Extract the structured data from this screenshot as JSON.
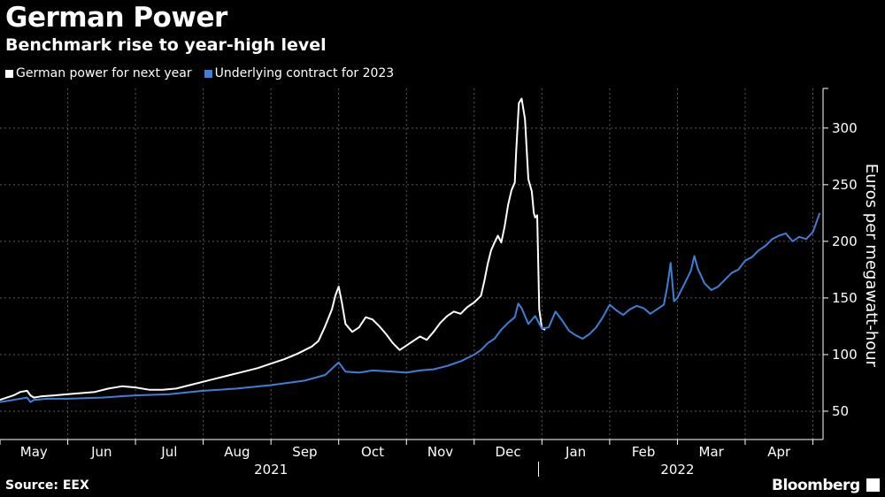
{
  "header": {
    "title": "German Power",
    "subtitle": "Benchmark rise to year-high level"
  },
  "footer": {
    "source": "Source: EEX",
    "brand": "Bloomberg"
  },
  "colors": {
    "background": "#000000",
    "series_white": "#ffffff",
    "series_blue": "#3d7fd9",
    "grid": "#5a5a5a"
  },
  "chart_data": {
    "type": "line",
    "title": "German Power",
    "subtitle": "Benchmark rise to year-high level",
    "xlabel": "",
    "ylabel": "Euros per megawatt-hour",
    "ylim": [
      25,
      335
    ],
    "xlim": [
      0,
      12.15
    ],
    "x_unit": "months since 2021-05-01",
    "yticks": [
      50,
      100,
      150,
      200,
      250,
      300
    ],
    "months": [
      "May",
      "Jun",
      "Jul",
      "Aug",
      "Sep",
      "Oct",
      "Nov",
      "Dec",
      "Jan",
      "Feb",
      "Mar",
      "Apr"
    ],
    "years": [
      {
        "label": "2021",
        "center": 4
      },
      {
        "label": "2022",
        "center": 10
      }
    ],
    "year_divider": 7.95,
    "grid": true,
    "legend_position": "top-left",
    "series": [
      {
        "name": "German power for next year",
        "color": "#ffffff",
        "points": [
          [
            0.0,
            60
          ],
          [
            0.1,
            62
          ],
          [
            0.2,
            64
          ],
          [
            0.3,
            67
          ],
          [
            0.4,
            68
          ],
          [
            0.45,
            64
          ],
          [
            0.5,
            62
          ],
          [
            0.6,
            63
          ],
          [
            0.8,
            64
          ],
          [
            1.0,
            65
          ],
          [
            1.2,
            66
          ],
          [
            1.4,
            67
          ],
          [
            1.6,
            70
          ],
          [
            1.8,
            72
          ],
          [
            2.0,
            71
          ],
          [
            2.2,
            69
          ],
          [
            2.4,
            69
          ],
          [
            2.6,
            70
          ],
          [
            2.8,
            73
          ],
          [
            3.0,
            76
          ],
          [
            3.2,
            79
          ],
          [
            3.4,
            82
          ],
          [
            3.6,
            85
          ],
          [
            3.8,
            88
          ],
          [
            4.0,
            92
          ],
          [
            4.2,
            96
          ],
          [
            4.4,
            101
          ],
          [
            4.5,
            104
          ],
          [
            4.6,
            107
          ],
          [
            4.7,
            112
          ],
          [
            4.8,
            125
          ],
          [
            4.9,
            140
          ],
          [
            4.95,
            152
          ],
          [
            5.0,
            160
          ],
          [
            5.05,
            145
          ],
          [
            5.1,
            127
          ],
          [
            5.2,
            120
          ],
          [
            5.3,
            124
          ],
          [
            5.4,
            133
          ],
          [
            5.5,
            131
          ],
          [
            5.6,
            125
          ],
          [
            5.7,
            118
          ],
          [
            5.8,
            110
          ],
          [
            5.9,
            104
          ],
          [
            6.0,
            108
          ],
          [
            6.1,
            112
          ],
          [
            6.2,
            116
          ],
          [
            6.3,
            113
          ],
          [
            6.4,
            120
          ],
          [
            6.5,
            128
          ],
          [
            6.6,
            134
          ],
          [
            6.7,
            138
          ],
          [
            6.8,
            136
          ],
          [
            6.9,
            142
          ],
          [
            7.0,
            146
          ],
          [
            7.1,
            152
          ],
          [
            7.15,
            165
          ],
          [
            7.2,
            180
          ],
          [
            7.25,
            192
          ],
          [
            7.3,
            199
          ],
          [
            7.35,
            205
          ],
          [
            7.4,
            199
          ],
          [
            7.45,
            213
          ],
          [
            7.5,
            232
          ],
          [
            7.55,
            245
          ],
          [
            7.6,
            252
          ],
          [
            7.62,
            280
          ],
          [
            7.66,
            322
          ],
          [
            7.7,
            326
          ],
          [
            7.75,
            308
          ],
          [
            7.8,
            255
          ],
          [
            7.85,
            244
          ],
          [
            7.88,
            225
          ],
          [
            7.9,
            221
          ],
          [
            7.93,
            223
          ],
          [
            7.96,
            140
          ],
          [
            8.0,
            123
          ],
          [
            8.05,
            122
          ]
        ]
      },
      {
        "name": "Underlying contract for 2023",
        "color": "#3d7fd9",
        "points": [
          [
            0.0,
            58
          ],
          [
            0.2,
            60
          ],
          [
            0.4,
            62
          ],
          [
            0.45,
            58
          ],
          [
            0.5,
            60
          ],
          [
            0.7,
            61
          ],
          [
            1.0,
            61
          ],
          [
            1.5,
            62
          ],
          [
            2.0,
            64
          ],
          [
            2.5,
            65
          ],
          [
            3.0,
            68
          ],
          [
            3.5,
            70
          ],
          [
            4.0,
            73
          ],
          [
            4.5,
            77
          ],
          [
            4.8,
            82
          ],
          [
            5.0,
            93
          ],
          [
            5.1,
            85
          ],
          [
            5.3,
            84
          ],
          [
            5.5,
            86
          ],
          [
            5.8,
            85
          ],
          [
            6.0,
            84
          ],
          [
            6.2,
            86
          ],
          [
            6.4,
            87
          ],
          [
            6.6,
            90
          ],
          [
            6.8,
            94
          ],
          [
            7.0,
            100
          ],
          [
            7.1,
            104
          ],
          [
            7.2,
            110
          ],
          [
            7.3,
            114
          ],
          [
            7.4,
            122
          ],
          [
            7.5,
            128
          ],
          [
            7.6,
            133
          ],
          [
            7.65,
            145
          ],
          [
            7.7,
            141
          ],
          [
            7.8,
            127
          ],
          [
            7.9,
            134
          ],
          [
            8.0,
            123
          ],
          [
            8.1,
            124
          ],
          [
            8.2,
            138
          ],
          [
            8.3,
            130
          ],
          [
            8.4,
            121
          ],
          [
            8.5,
            117
          ],
          [
            8.6,
            114
          ],
          [
            8.7,
            118
          ],
          [
            8.8,
            124
          ],
          [
            8.9,
            133
          ],
          [
            9.0,
            144
          ],
          [
            9.1,
            139
          ],
          [
            9.2,
            135
          ],
          [
            9.3,
            140
          ],
          [
            9.4,
            143
          ],
          [
            9.5,
            141
          ],
          [
            9.6,
            136
          ],
          [
            9.7,
            140
          ],
          [
            9.8,
            144
          ],
          [
            9.85,
            160
          ],
          [
            9.9,
            181
          ],
          [
            9.95,
            147
          ],
          [
            10.0,
            150
          ],
          [
            10.1,
            162
          ],
          [
            10.2,
            174
          ],
          [
            10.25,
            187
          ],
          [
            10.3,
            176
          ],
          [
            10.4,
            163
          ],
          [
            10.5,
            157
          ],
          [
            10.6,
            160
          ],
          [
            10.7,
            166
          ],
          [
            10.8,
            172
          ],
          [
            10.9,
            175
          ],
          [
            11.0,
            183
          ],
          [
            11.1,
            186
          ],
          [
            11.2,
            192
          ],
          [
            11.3,
            196
          ],
          [
            11.4,
            202
          ],
          [
            11.5,
            205
          ],
          [
            11.6,
            207
          ],
          [
            11.7,
            200
          ],
          [
            11.8,
            204
          ],
          [
            11.9,
            202
          ],
          [
            12.0,
            208
          ],
          [
            12.1,
            225
          ]
        ]
      }
    ]
  }
}
